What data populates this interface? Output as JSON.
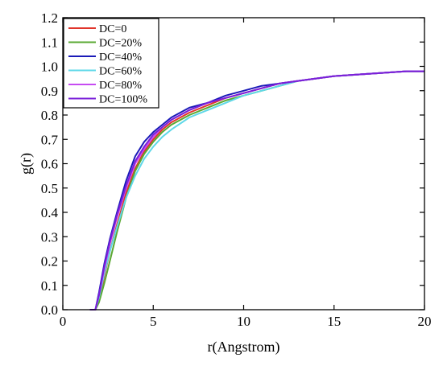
{
  "chart_data": {
    "type": "line",
    "title": "",
    "xlabel": "r(Angstrom)",
    "ylabel": "g(r)",
    "xlim": [
      0,
      20
    ],
    "ylim": [
      0,
      1.2
    ],
    "xticks": [
      0,
      5,
      10,
      15,
      20
    ],
    "yticks": [
      0.0,
      0.1,
      0.2,
      0.3,
      0.4,
      0.5,
      0.6,
      0.7,
      0.8,
      0.9,
      1.0,
      1.1,
      1.2
    ],
    "ytick_labels": [
      "0.0",
      "0.1",
      "0.2",
      "0.3",
      "0.4",
      "0.5",
      "0.6",
      "0.7",
      "0.8",
      "0.9",
      "1.0",
      "1.1",
      "1.2"
    ],
    "grid": false,
    "legend_position": "top-left",
    "x": [
      1.5,
      1.8,
      2.0,
      2.3,
      2.6,
      3.0,
      3.5,
      4.0,
      4.5,
      5.0,
      5.5,
      6.0,
      7.0,
      8.0,
      9.0,
      10.0,
      11.0,
      12.0,
      13.0,
      14.0,
      15.0,
      16.0,
      17.0,
      18.0,
      19.0,
      20.0
    ],
    "series": [
      {
        "name": "DC=0",
        "color": "#e0352b",
        "values": [
          0.0,
          0.0,
          0.04,
          0.14,
          0.24,
          0.35,
          0.48,
          0.58,
          0.65,
          0.7,
          0.74,
          0.77,
          0.81,
          0.84,
          0.87,
          0.89,
          0.91,
          0.93,
          0.94,
          0.95,
          0.96,
          0.965,
          0.97,
          0.975,
          0.98,
          0.98
        ]
      },
      {
        "name": "DC=20%",
        "color": "#5aa832",
        "values": [
          0.0,
          0.0,
          0.03,
          0.11,
          0.2,
          0.32,
          0.46,
          0.57,
          0.64,
          0.69,
          0.73,
          0.76,
          0.8,
          0.83,
          0.86,
          0.88,
          0.9,
          0.92,
          0.94,
          0.95,
          0.96,
          0.965,
          0.97,
          0.975,
          0.98,
          0.98
        ]
      },
      {
        "name": "DC=40%",
        "color": "#1b1bb8",
        "values": [
          0.0,
          0.0,
          0.07,
          0.19,
          0.29,
          0.4,
          0.53,
          0.63,
          0.69,
          0.73,
          0.76,
          0.79,
          0.83,
          0.85,
          0.88,
          0.9,
          0.92,
          0.93,
          0.94,
          0.95,
          0.96,
          0.965,
          0.97,
          0.975,
          0.98,
          0.98
        ]
      },
      {
        "name": "DC=60%",
        "color": "#5fd8e8",
        "values": [
          0.0,
          0.0,
          0.05,
          0.15,
          0.24,
          0.34,
          0.46,
          0.55,
          0.62,
          0.67,
          0.71,
          0.74,
          0.79,
          0.82,
          0.85,
          0.88,
          0.9,
          0.92,
          0.94,
          0.95,
          0.96,
          0.965,
          0.97,
          0.975,
          0.98,
          0.98
        ]
      },
      {
        "name": "DC=80%",
        "color": "#c64bf2",
        "values": [
          0.0,
          0.0,
          0.06,
          0.17,
          0.27,
          0.38,
          0.5,
          0.6,
          0.66,
          0.71,
          0.75,
          0.78,
          0.82,
          0.85,
          0.87,
          0.89,
          0.91,
          0.93,
          0.94,
          0.95,
          0.96,
          0.965,
          0.97,
          0.975,
          0.98,
          0.98
        ]
      },
      {
        "name": "DC=100%",
        "color": "#7a1fd9",
        "values": [
          0.0,
          0.0,
          0.06,
          0.18,
          0.28,
          0.39,
          0.51,
          0.61,
          0.67,
          0.72,
          0.75,
          0.78,
          0.82,
          0.85,
          0.87,
          0.89,
          0.91,
          0.93,
          0.94,
          0.95,
          0.96,
          0.965,
          0.97,
          0.975,
          0.98,
          0.98
        ]
      }
    ]
  }
}
